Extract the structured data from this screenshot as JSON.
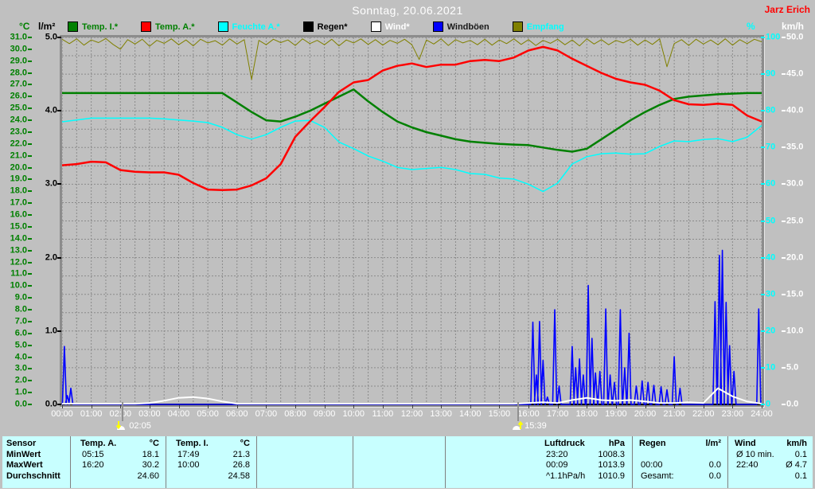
{
  "window": {
    "title": "Sonntag, 20.06.2021",
    "user": "Jarz Erich"
  },
  "axis_units": {
    "temp": "°C",
    "rain": "l/m²",
    "humidity": "%",
    "wind": "km/h"
  },
  "legend": {
    "items": [
      {
        "label": "Temp. I.*",
        "box_color": "#008000",
        "text_color": "#008000"
      },
      {
        "label": "Temp. A.*",
        "box_color": "#ff0000",
        "text_color": "#008000"
      },
      {
        "label": "Feuchte A.*",
        "box_color": "#00ffff",
        "text_color": "#00ffff"
      },
      {
        "label": "Regen*",
        "box_color": "#000000",
        "text_color": "#000000"
      },
      {
        "label": "Wind*",
        "box_color": "#ffffff",
        "text_color": "#ffffff"
      },
      {
        "label": "Windböen",
        "box_color": "#0000ff",
        "text_color": "#1a1a1a"
      },
      {
        "label": "Empfang",
        "box_color": "#808000",
        "text_color": "#00ffff"
      }
    ]
  },
  "chart_data": {
    "type": "line",
    "title": "Sonntag, 20.06.2021",
    "x_axis": {
      "labels": [
        "00:00",
        "01:00",
        "02:00",
        "03:00",
        "04:00",
        "05:00",
        "06:00",
        "07:00",
        "08:00",
        "09:00",
        "10:00",
        "11:00",
        "12:00",
        "13:00",
        "14:00",
        "15:00",
        "16:00",
        "17:00",
        "18:00",
        "19:00",
        "20:00",
        "21:00",
        "22:00",
        "23:00",
        "24:00"
      ],
      "min_hour": 0,
      "max_hour": 24,
      "minor_grid_minutes": 30
    },
    "axes": {
      "temp_c": {
        "unit": "°C",
        "min": 0,
        "max": 31,
        "step": 1,
        "decimals": 1,
        "color": "#008000",
        "side": "left"
      },
      "rain_lm2": {
        "unit": "l/m²",
        "min": 0,
        "max": 5,
        "step": 1,
        "decimals": 1,
        "color": "#000000",
        "side": "left"
      },
      "percent": {
        "unit": "%",
        "min": 0,
        "max": 100,
        "step": 10,
        "decimals": 0,
        "color": "#00ffff",
        "side": "right"
      },
      "kmh": {
        "unit": "km/h",
        "min": 0,
        "max": 50,
        "step": 5,
        "decimals": 1,
        "color": "#ffffff",
        "side": "right"
      }
    },
    "grid": {
      "horizontal_percent_step": 5,
      "vertical_minutes": 30,
      "color": "#8a8a8a",
      "dashed": true
    },
    "series": [
      {
        "name": "Empfang",
        "axis": "percent",
        "color": "#808000",
        "width": 1,
        "interval_min": 15,
        "values": [
          99.5,
          98.3,
          99.6,
          97.9,
          99.3,
          98.6,
          99.7,
          98.1,
          96.8,
          99.4,
          98.2,
          99.5,
          97.6,
          99.2,
          98.4,
          99.6,
          98.0,
          99.3,
          97.7,
          99.5,
          98.5,
          99.1,
          97.9,
          99.6,
          98.2,
          99.4,
          88.5,
          99.2,
          98.0,
          99.5,
          98.6,
          99.3,
          97.8,
          99.6,
          98.3,
          99.2,
          98.0,
          99.5,
          97.7,
          99.3,
          98.5,
          99.6,
          98.1,
          99.4,
          97.9,
          99.2,
          98.4,
          99.5,
          98.0,
          94.0,
          99.3,
          98.2,
          99.6,
          97.8,
          99.4,
          98.5,
          99.2,
          98.0,
          99.5,
          97.9,
          99.3,
          98.3,
          99.6,
          98.1,
          99.4,
          97.8,
          99.2,
          98.4,
          99.5,
          98.0,
          99.3,
          97.7,
          99.6,
          98.2,
          99.4,
          98.0,
          99.2,
          98.5,
          99.5,
          97.9,
          99.3,
          98.1,
          99.6,
          92.0,
          98.3,
          99.4,
          97.8,
          99.5,
          98.2,
          99.3,
          98.0,
          99.6,
          97.9,
          99.4,
          98.3,
          99.5,
          98.8
        ]
      },
      {
        "name": "Regen*",
        "axis": "rain_lm2",
        "color": "#000000",
        "width": 2,
        "interval_min": 1440,
        "values": [
          0.0,
          0.0
        ]
      },
      {
        "name": "Windböen",
        "axis": "kmh",
        "color": "#0000ff",
        "width": 1.6,
        "style": "spikes",
        "spikes": [
          [
            0.08,
            7.9
          ],
          [
            0.18,
            1.2
          ],
          [
            0.3,
            2.2
          ],
          [
            16.15,
            11.2
          ],
          [
            16.27,
            4.0
          ],
          [
            16.38,
            11.3
          ],
          [
            16.5,
            6.0
          ],
          [
            16.65,
            1.0
          ],
          [
            16.9,
            12.9
          ],
          [
            17.05,
            2.5
          ],
          [
            17.5,
            7.9
          ],
          [
            17.62,
            5.0
          ],
          [
            17.75,
            6.2
          ],
          [
            17.88,
            4.0
          ],
          [
            18.05,
            16.2
          ],
          [
            18.18,
            9.0
          ],
          [
            18.3,
            4.3
          ],
          [
            18.45,
            4.5
          ],
          [
            18.65,
            13.0
          ],
          [
            18.8,
            4.0
          ],
          [
            18.95,
            3.0
          ],
          [
            19.15,
            12.9
          ],
          [
            19.3,
            5.0
          ],
          [
            19.45,
            9.7
          ],
          [
            19.7,
            2.5
          ],
          [
            19.9,
            3.2
          ],
          [
            20.1,
            3.0
          ],
          [
            20.3,
            2.6
          ],
          [
            20.55,
            2.4
          ],
          [
            20.75,
            2.0
          ],
          [
            21.0,
            6.5
          ],
          [
            21.2,
            2.2
          ],
          [
            22.4,
            14.0
          ],
          [
            22.55,
            20.3
          ],
          [
            22.65,
            21.0
          ],
          [
            22.78,
            13.9
          ],
          [
            22.9,
            8.0
          ],
          [
            23.05,
            4.5
          ],
          [
            23.9,
            13.0
          ]
        ]
      },
      {
        "name": "Wind*",
        "axis": "kmh",
        "color": "#ffffff",
        "width": 2,
        "interval_min": 30,
        "values": [
          0.1,
          0.1,
          0.1,
          0.1,
          0.1,
          0.1,
          0.2,
          0.5,
          0.9,
          1.0,
          0.8,
          0.4,
          0.1,
          0.1,
          0.1,
          0.1,
          0.1,
          0.1,
          0.1,
          0.1,
          0.1,
          0.1,
          0.1,
          0.1,
          0.1,
          0.1,
          0.1,
          0.1,
          0.1,
          0.1,
          0.1,
          0.1,
          0.2,
          0.3,
          0.2,
          0.6,
          0.9,
          0.6,
          0.5,
          0.6,
          0.4,
          0.2,
          0.2,
          0.3,
          0.2,
          2.2,
          1.1,
          0.4,
          0.1
        ]
      },
      {
        "name": "Feuchte A.*",
        "axis": "percent",
        "color": "#00ffff",
        "width": 1.5,
        "interval_min": 30,
        "values": [
          77.0,
          77.5,
          78.0,
          78.0,
          78.0,
          78.0,
          78.0,
          77.8,
          77.5,
          77.2,
          76.8,
          75.5,
          73.5,
          72.3,
          73.5,
          75.5,
          77.2,
          77.4,
          75.5,
          71.5,
          69.7,
          67.7,
          66.3,
          64.6,
          64.0,
          64.3,
          64.6,
          64.0,
          62.9,
          62.7,
          61.7,
          61.4,
          60.0,
          58.0,
          60.3,
          65.5,
          67.5,
          68.3,
          68.5,
          68.2,
          68.3,
          70.3,
          71.8,
          71.6,
          72.2,
          72.4,
          71.6,
          72.8,
          76.0
        ]
      },
      {
        "name": "Temp. I.*",
        "axis": "temp_c",
        "color": "#008000",
        "width": 2.5,
        "interval_min": 30,
        "values": [
          26.3,
          26.3,
          26.3,
          26.3,
          26.3,
          26.3,
          26.3,
          26.3,
          26.3,
          26.3,
          26.3,
          26.3,
          25.5,
          24.7,
          24.0,
          23.9,
          24.3,
          24.8,
          25.4,
          26.0,
          26.6,
          25.6,
          24.7,
          23.9,
          23.4,
          23.0,
          22.7,
          22.4,
          22.2,
          22.1,
          22.0,
          21.95,
          21.9,
          21.7,
          21.5,
          21.35,
          21.6,
          22.4,
          23.2,
          24.0,
          24.7,
          25.3,
          25.8,
          26.0,
          26.1,
          26.2,
          26.25,
          26.3,
          26.3
        ]
      },
      {
        "name": "Temp. A.*",
        "axis": "temp_c",
        "color": "#ff0000",
        "width": 2.5,
        "interval_min": 30,
        "values": [
          20.2,
          20.3,
          20.5,
          20.45,
          19.8,
          19.65,
          19.6,
          19.6,
          19.4,
          18.7,
          18.15,
          18.1,
          18.15,
          18.5,
          19.1,
          20.3,
          22.6,
          23.9,
          25.1,
          26.4,
          27.2,
          27.4,
          28.2,
          28.6,
          28.8,
          28.5,
          28.7,
          28.7,
          29.0,
          29.1,
          29.0,
          29.3,
          29.9,
          30.2,
          29.9,
          29.2,
          28.6,
          28.0,
          27.5,
          27.2,
          27.0,
          26.5,
          25.7,
          25.35,
          25.3,
          25.4,
          25.3,
          24.4,
          23.9
        ]
      }
    ],
    "markers": [
      {
        "time": "02:05",
        "hour": 2.083,
        "icon": "sun-down"
      },
      {
        "time": "15:39",
        "hour": 15.65,
        "icon": "sun-up"
      }
    ]
  },
  "summary_table": {
    "row_headers": [
      "Sensor",
      "MinWert",
      "MaxWert",
      "Durchschnitt"
    ],
    "columns": [
      {
        "name": "Temp. A.",
        "unit": "°C",
        "rows": [
          [
            "05:15",
            "18.1"
          ],
          [
            "16:20",
            "30.2"
          ],
          [
            "",
            "24.60"
          ]
        ]
      },
      {
        "name": "Temp. I.",
        "unit": "°C",
        "rows": [
          [
            "17:49",
            "21.3"
          ],
          [
            "10:00",
            "26.8"
          ],
          [
            "",
            "24.58"
          ]
        ]
      },
      {
        "name": "",
        "unit": "",
        "rows": [
          [
            "",
            ""
          ],
          [
            "",
            ""
          ],
          [
            "",
            ""
          ]
        ]
      },
      {
        "name": "",
        "unit": "",
        "rows": [
          [
            "",
            ""
          ],
          [
            "",
            ""
          ],
          [
            "",
            ""
          ]
        ]
      },
      {
        "name": "Luftdruck",
        "unit": "hPa",
        "rows": [
          [
            "23:20",
            "1008.3"
          ],
          [
            "00:09",
            "1013.9"
          ],
          [
            "^1.1hPa/h",
            "1010.9"
          ]
        ]
      },
      {
        "name": "Regen",
        "unit": "l/m²",
        "rows": [
          [
            "",
            ""
          ],
          [
            "00:00",
            "0.0"
          ],
          [
            "Gesamt:",
            "0.0"
          ]
        ]
      },
      {
        "name": "Wind",
        "unit": "km/h",
        "rows": [
          [
            "Ø 10 min.",
            "0.1"
          ],
          [
            "22:40",
            "Ø 4.7"
          ],
          [
            "",
            "0.1"
          ]
        ]
      }
    ]
  }
}
